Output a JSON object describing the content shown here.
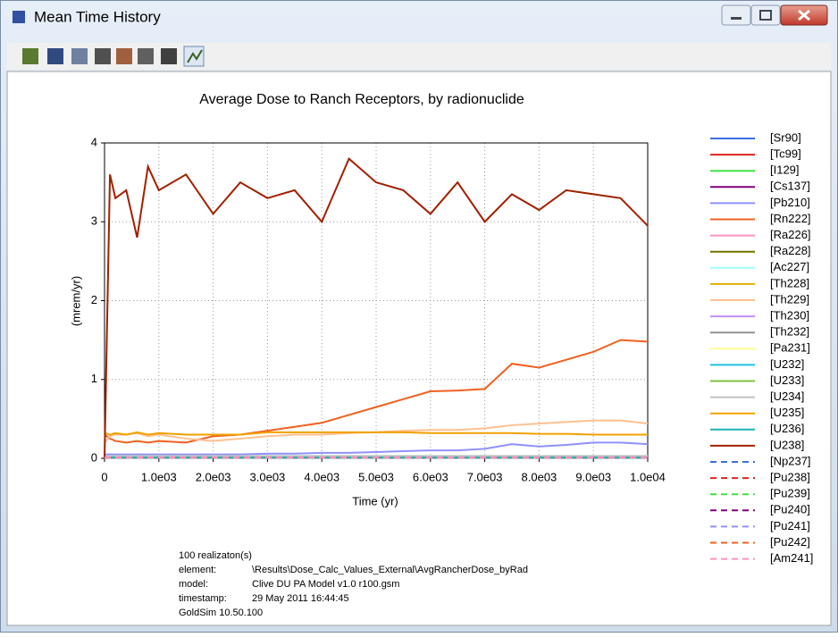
{
  "window": {
    "title": "Mean Time History"
  },
  "chart_data": {
    "type": "line",
    "title": "Average Dose to Ranch Receptors, by radionuclide",
    "x_label": "Time (yr)",
    "y_label": "(mrem/yr)",
    "xlim": [
      0,
      10000
    ],
    "ylim": [
      0,
      4
    ],
    "xticks": [
      0,
      {
        "value": 1000,
        "label": "1.0e03"
      },
      {
        "value": 2000,
        "label": "2.0e03"
      },
      {
        "value": 3000,
        "label": "3.0e03"
      },
      {
        "value": 4000,
        "label": "4.0e03"
      },
      {
        "value": 5000,
        "label": "5.0e03"
      },
      {
        "value": 6000,
        "label": "6.0e03"
      },
      {
        "value": 7000,
        "label": "7.0e03"
      },
      {
        "value": 8000,
        "label": "8.0e03"
      },
      {
        "value": 9000,
        "label": "9.0e03"
      },
      {
        "value": 10000,
        "label": "1.0e04"
      }
    ],
    "yticks": [
      0,
      1,
      2,
      3,
      4
    ],
    "grid": true,
    "legend": "right",
    "x": [
      0,
      100,
      200,
      400,
      600,
      800,
      1000,
      1500,
      2000,
      2500,
      3000,
      3500,
      4000,
      4500,
      5000,
      5500,
      6000,
      6500,
      7000,
      7500,
      8000,
      8500,
      9000,
      9500,
      10000
    ],
    "series": [
      {
        "name": "[Sr90]",
        "color": "#3a6fe0",
        "x": [
          0,
          10000
        ],
        "values": [
          0.01,
          0.01
        ]
      },
      {
        "name": "[Tc99]",
        "color": "#e02020",
        "x": [
          0,
          10000
        ],
        "values": [
          0.01,
          0.01
        ]
      },
      {
        "name": "[I129]",
        "color": "#40e040",
        "x": [
          0,
          10000
        ],
        "values": [
          0.01,
          0.01
        ]
      },
      {
        "name": "[Cs137]",
        "color": "#800080",
        "x": [
          0,
          10000
        ],
        "values": [
          0.01,
          0.01
        ]
      },
      {
        "name": "[Pb210]",
        "color": "#9090ff",
        "values": [
          0.05,
          0.05,
          0.05,
          0.05,
          0.05,
          0.05,
          0.05,
          0.05,
          0.05,
          0.05,
          0.06,
          0.06,
          0.07,
          0.07,
          0.08,
          0.09,
          0.1,
          0.1,
          0.12,
          0.18,
          0.15,
          0.17,
          0.2,
          0.2,
          0.18
        ]
      },
      {
        "name": "[Rn222]",
        "color": "#f06020",
        "values": [
          0.3,
          0.25,
          0.22,
          0.2,
          0.22,
          0.2,
          0.22,
          0.2,
          0.28,
          0.3,
          0.35,
          0.4,
          0.45,
          0.55,
          0.65,
          0.75,
          0.85,
          0.86,
          0.88,
          1.2,
          1.15,
          1.25,
          1.35,
          1.5,
          1.48
        ]
      },
      {
        "name": "[Ra226]",
        "color": "#ff90c0",
        "x": [
          0,
          10000
        ],
        "values": [
          0.02,
          0.02
        ]
      },
      {
        "name": "[Ra228]",
        "color": "#707000",
        "x": [
          0,
          10000
        ],
        "values": [
          0.01,
          0.01
        ]
      },
      {
        "name": "[Ac227]",
        "color": "#a0ffff",
        "x": [
          0,
          10000
        ],
        "values": [
          0.03,
          0.03
        ]
      },
      {
        "name": "[Th228]",
        "color": "#e0b000",
        "x": [
          0,
          10000
        ],
        "values": [
          0.02,
          0.02
        ]
      },
      {
        "name": "[Th229]",
        "color": "#ffc090",
        "values": [
          0.2,
          0.28,
          0.3,
          0.3,
          0.32,
          0.28,
          0.3,
          0.25,
          0.22,
          0.25,
          0.28,
          0.3,
          0.3,
          0.32,
          0.33,
          0.35,
          0.36,
          0.36,
          0.38,
          0.42,
          0.44,
          0.46,
          0.48,
          0.48,
          0.44
        ]
      },
      {
        "name": "[Th230]",
        "color": "#c090ff",
        "x": [
          0,
          10000
        ],
        "values": [
          0.02,
          0.02
        ]
      },
      {
        "name": "[Th232]",
        "color": "#909090",
        "x": [
          0,
          10000
        ],
        "values": [
          0.01,
          0.01
        ]
      },
      {
        "name": "[Pa231]",
        "color": "#ffff90",
        "x": [
          0,
          10000
        ],
        "values": [
          0.02,
          0.02
        ]
      },
      {
        "name": "[U232]",
        "color": "#20c0e0",
        "x": [
          0,
          10000
        ],
        "values": [
          0.01,
          0.01
        ]
      },
      {
        "name": "[U233]",
        "color": "#80c040",
        "x": [
          0,
          10000
        ],
        "values": [
          0.01,
          0.01
        ]
      },
      {
        "name": "[U234]",
        "color": "#c0c0c0",
        "x": [
          0,
          10000
        ],
        "values": [
          0.03,
          0.03
        ]
      },
      {
        "name": "[U235]",
        "color": "#f0a000",
        "values": [
          0.32,
          0.3,
          0.32,
          0.3,
          0.33,
          0.3,
          0.32,
          0.3,
          0.3,
          0.3,
          0.33,
          0.33,
          0.33,
          0.33,
          0.33,
          0.33,
          0.32,
          0.32,
          0.32,
          0.32,
          0.31,
          0.31,
          0.3,
          0.3,
          0.3
        ]
      },
      {
        "name": "[U236]",
        "color": "#20b0b0",
        "x": [
          0,
          10000
        ],
        "values": [
          0.01,
          0.01
        ]
      },
      {
        "name": "[U238]",
        "color": "#a02000",
        "values": [
          0,
          3.6,
          3.3,
          3.4,
          2.8,
          3.7,
          3.4,
          3.6,
          3.1,
          3.5,
          3.3,
          3.4,
          3.0,
          3.8,
          3.5,
          3.4,
          3.1,
          3.5,
          3.0,
          3.35,
          3.15,
          3.4,
          3.35,
          3.3,
          2.95
        ]
      },
      {
        "name": "[Np237]",
        "color": "#3a6fe0",
        "dashed": true,
        "x": [
          0,
          10000
        ],
        "values": [
          0.01,
          0.01
        ]
      },
      {
        "name": "[Pu238]",
        "color": "#e02020",
        "dashed": true,
        "x": [
          0,
          10000
        ],
        "values": [
          0.01,
          0.01
        ]
      },
      {
        "name": "[Pu239]",
        "color": "#40e040",
        "dashed": true,
        "x": [
          0,
          10000
        ],
        "values": [
          0.01,
          0.01
        ]
      },
      {
        "name": "[Pu240]",
        "color": "#800080",
        "dashed": true,
        "x": [
          0,
          10000
        ],
        "values": [
          0.01,
          0.01
        ]
      },
      {
        "name": "[Pu241]",
        "color": "#9090ff",
        "dashed": true,
        "x": [
          0,
          10000
        ],
        "values": [
          0.01,
          0.01
        ]
      },
      {
        "name": "[Pu242]",
        "color": "#f06020",
        "dashed": true,
        "x": [
          0,
          10000
        ],
        "values": [
          0.01,
          0.01
        ]
      },
      {
        "name": "[Am241]",
        "color": "#ff90c0",
        "dashed": true,
        "x": [
          0,
          10000
        ],
        "values": [
          0.01,
          0.01
        ]
      }
    ]
  },
  "footer": {
    "realizations": "100 realizaton(s)",
    "rows": [
      {
        "label": "element:",
        "value": "\\Results\\Dose_Calc_Values_External\\AvgRancherDose_byRad"
      },
      {
        "label": "model:",
        "value": "Clive DU PA Model v1.0 r100.gsm"
      },
      {
        "label": "timestamp:",
        "value": "29 May 2011 16:44:45"
      }
    ],
    "version": "GoldSim 10.50.100"
  }
}
